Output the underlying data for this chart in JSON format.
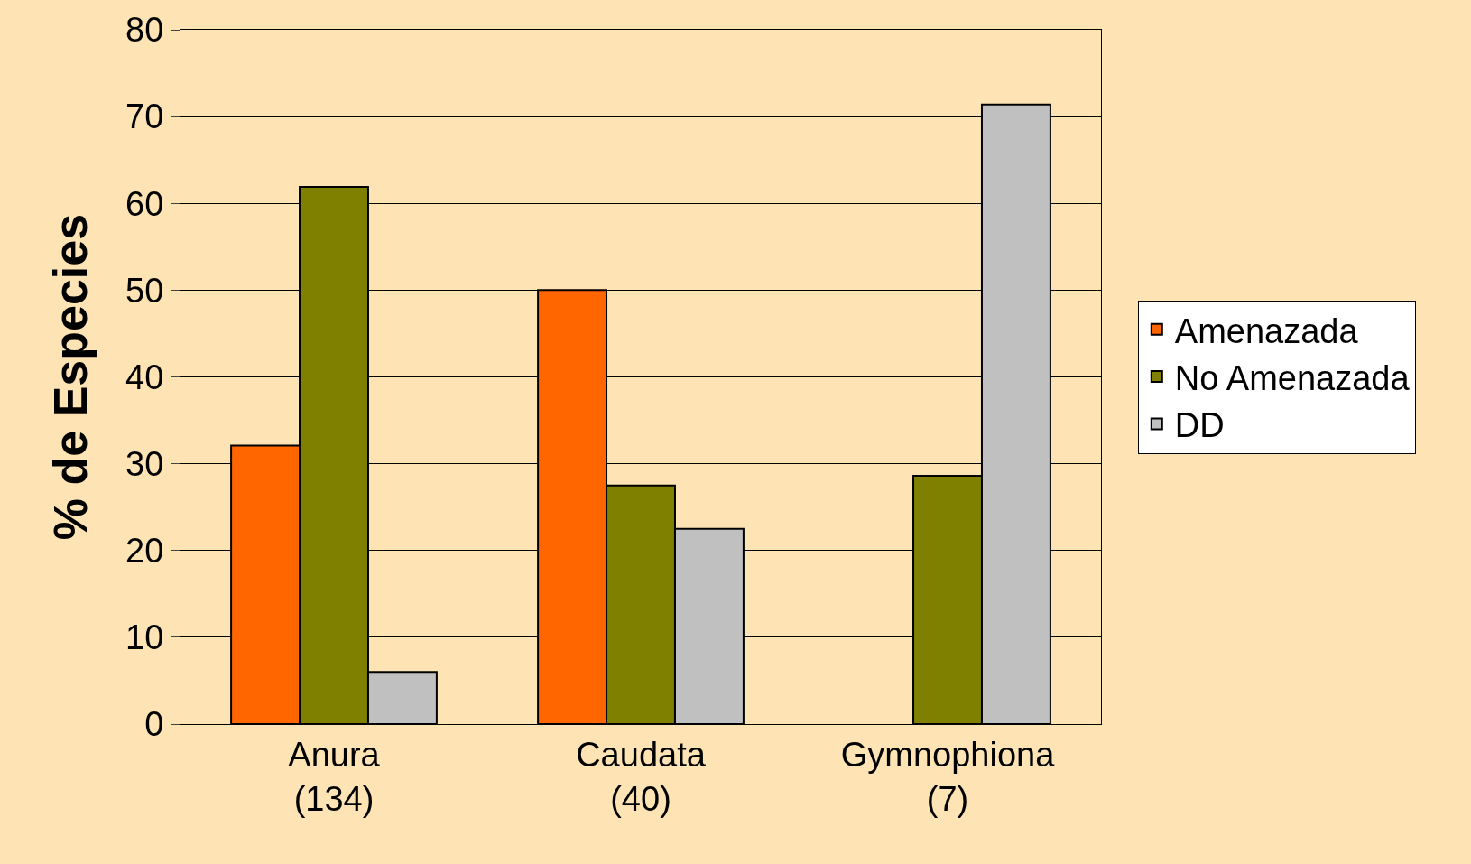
{
  "chart_data": {
    "type": "bar",
    "ylabel": "% de Especies",
    "categories": [
      "Anura\n(134)",
      "Caudata\n(40)",
      "Gymnophiona\n(7)"
    ],
    "series": [
      {
        "name": "Amenazada",
        "color": "#ff6600",
        "values": [
          32.1,
          50,
          null
        ]
      },
      {
        "name": "No Amenazada",
        "color": "#808000",
        "values": [
          61.9,
          27.5,
          28.6
        ]
      },
      {
        "name": "DD",
        "color": "#c0c0c0",
        "values": [
          6,
          22.5,
          71.4
        ]
      }
    ],
    "ylim": [
      0,
      80
    ],
    "yticks": [
      0,
      10,
      20,
      30,
      40,
      50,
      60,
      70,
      80
    ],
    "grid": "y",
    "legend": "right"
  }
}
